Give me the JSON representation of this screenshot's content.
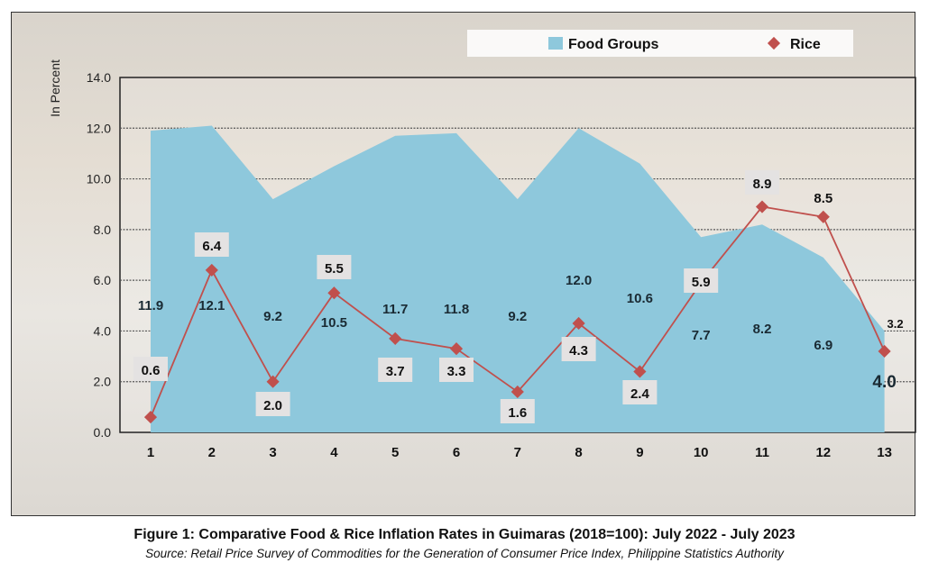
{
  "chart_data": {
    "type": "area+line",
    "title": "Figure 1: Comparative Food & Rice Inflation Rates in Guimaras (2018=100): July 2022 - July 2023",
    "source": "Source: Retail Price Survey of Commodities for the Generation of Consumer Price Index, Philippine Statistics Authority",
    "ylabel": "In Percent",
    "xlabel": "",
    "ylim": [
      0,
      14
    ],
    "yticks": [
      "0.0",
      "2.0",
      "4.0",
      "6.0",
      "8.0",
      "10.0",
      "12.0",
      "14.0"
    ],
    "categories": [
      "1",
      "2",
      "3",
      "4",
      "5",
      "6",
      "7",
      "8",
      "9",
      "10",
      "11",
      "12",
      "13"
    ],
    "grid": true,
    "legend_position": "top-right",
    "series": [
      {
        "name": "Food Groups",
        "kind": "area",
        "color": "#8ec8dc",
        "values": [
          11.9,
          12.1,
          9.2,
          10.5,
          11.7,
          11.8,
          9.2,
          12.0,
          10.6,
          7.7,
          8.2,
          6.9,
          4.0
        ],
        "labels": [
          "11.9",
          "12.1",
          "9.2",
          "10.5",
          "11.7",
          "11.8",
          "9.2",
          "12.0",
          "10.6",
          "7.7",
          "8.2",
          "6.9",
          "4.0"
        ]
      },
      {
        "name": "Rice",
        "kind": "line",
        "color": "#c0504d",
        "values": [
          0.6,
          6.4,
          2.0,
          5.5,
          3.7,
          3.3,
          1.6,
          4.3,
          2.4,
          5.9,
          8.9,
          8.5,
          3.2
        ],
        "labels": [
          "0.6",
          "6.4",
          "2.0",
          "5.5",
          "3.7",
          "3.3",
          "1.6",
          "4.3",
          "2.4",
          "5.9",
          "8.9",
          "8.5",
          "3.2"
        ]
      }
    ]
  }
}
